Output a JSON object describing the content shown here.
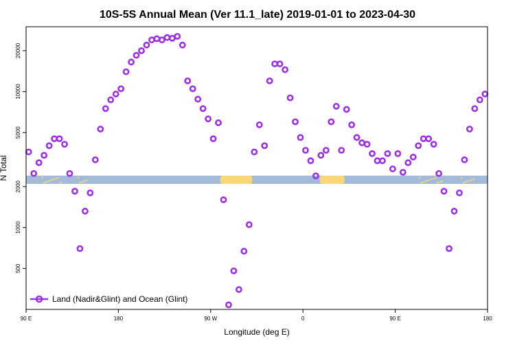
{
  "chart_data": {
    "type": "scatter",
    "title": "10S-5S Annual Mean (Ver 11.1_late)   2019-01-01 to 2023-04-30",
    "xlabel": "Longitude (deg E)",
    "ylabel": "N Total",
    "x_ticks": [
      {
        "value": 90,
        "label": "90 E"
      },
      {
        "value": 180,
        "label": "180"
      },
      {
        "value": 270,
        "label": "90 W"
      },
      {
        "value": 360,
        "label": "0"
      },
      {
        "value": 450,
        "label": "90 E"
      },
      {
        "value": 540,
        "label": "180"
      }
    ],
    "y_ticks": [
      {
        "value": 500,
        "label": "500"
      },
      {
        "value": 1000,
        "label": "1000"
      },
      {
        "value": 2000,
        "label": "2000"
      },
      {
        "value": 5000,
        "label": "5000"
      },
      {
        "value": 10000,
        "label": "10000"
      },
      {
        "value": 20000,
        "label": "20000"
      }
    ],
    "xlim": [
      90,
      540
    ],
    "ylim": [
      250,
      30000
    ],
    "y_scale": "log",
    "grid": false,
    "legend_position": "bottom-left",
    "land_strip": {
      "color_ocean": "#a3bbd9",
      "color_land": "#f8d776",
      "land_segmented_longitudes": [
        [
          105,
          125,
          "sparse"
        ],
        [
          140,
          150,
          "sparse"
        ],
        [
          278,
          312,
          "solid"
        ],
        [
          375,
          402,
          "solid"
        ],
        [
          473,
          497,
          "sparse"
        ],
        [
          514,
          527,
          "sparse"
        ]
      ]
    },
    "series": [
      {
        "name": "Land (Nadir&Glint) and Ocean (Glint)",
        "color": "#9b30e8",
        "marker": "hollow-circle",
        "x": [
          92.5,
          97.5,
          102.5,
          107.5,
          112.5,
          117.5,
          122.5,
          127.5,
          132.5,
          137.5,
          142.5,
          147.5,
          152.5,
          157.5,
          162.5,
          167.5,
          172.5,
          177.5,
          182.5,
          187.5,
          192.5,
          197.5,
          202.5,
          207.5,
          212.5,
          217.5,
          222.5,
          227.5,
          232.5,
          237.5,
          242.5,
          247.5,
          252.5,
          257.5,
          262.5,
          267.5,
          272.5,
          277.5,
          282.5,
          287.5,
          292.5,
          297.5,
          302.5,
          307.5,
          312.5,
          317.5,
          322.5,
          327.5,
          332.5,
          337.5,
          342.5,
          347.5,
          352.5,
          357.5,
          362.5,
          367.5,
          372.5,
          377.5,
          382.5,
          387.5,
          392.5,
          397.5,
          402.5,
          407.5,
          412.5,
          417.5,
          422.5,
          427.5,
          432.5,
          437.5,
          442.5,
          447.5,
          452.5,
          457.5,
          462.5,
          467.5,
          472.5,
          477.5,
          482.5,
          487.5,
          492.5,
          497.5,
          502.5,
          507.5,
          512.5,
          517.5,
          522.5,
          527.5,
          532.5,
          537.5
        ],
        "y": [
          3600,
          2500,
          3000,
          3400,
          4000,
          4500,
          4500,
          4100,
          2500,
          1850,
          700,
          1320,
          1800,
          3150,
          5300,
          7500,
          8700,
          9600,
          10500,
          14000,
          16500,
          18500,
          20000,
          22000,
          24000,
          24500,
          24000,
          25000,
          24700,
          25500,
          22000,
          12000,
          10500,
          8800,
          7500,
          6300,
          4500,
          5900,
          1600,
          270,
          480,
          350,
          670,
          1050,
          3600,
          5700,
          4000,
          12000,
          16000,
          16000,
          14500,
          9000,
          6000,
          4600,
          3700,
          3100,
          2400,
          3400,
          3700,
          6000,
          7800,
          3700,
          7400,
          5700,
          4600,
          4200,
          4100,
          3500,
          3100,
          3100,
          3500,
          2700,
          3500,
          2550,
          3000,
          3300,
          4000,
          4500,
          4500,
          4100,
          2500,
          1850,
          700,
          1320,
          1800,
          3150,
          5300,
          7500,
          8700,
          9600
        ]
      }
    ]
  }
}
